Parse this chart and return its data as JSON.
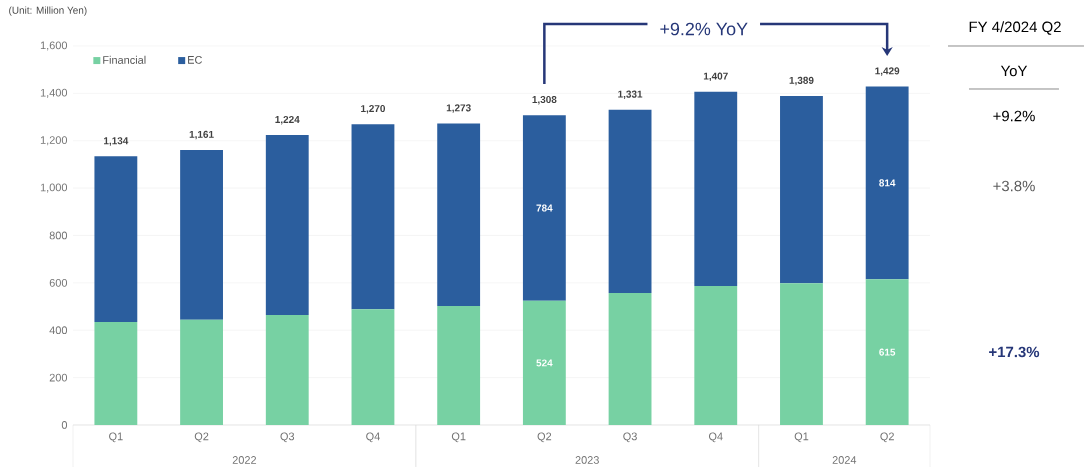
{
  "chart_data": {
    "type": "bar",
    "stacked": true,
    "categories": [
      "Q1",
      "Q2",
      "Q3",
      "Q4",
      "Q1",
      "Q2",
      "Q3",
      "Q4",
      "Q1",
      "Q2"
    ],
    "series": [
      {
        "name": "Financial",
        "color": "#77d1a3",
        "values": [
          435,
          444,
          464,
          489,
          502,
          524,
          557,
          587,
          598,
          615
        ],
        "value_labels": [
          null,
          null,
          null,
          null,
          null,
          "524",
          null,
          null,
          null,
          "615"
        ]
      },
      {
        "name": "EC",
        "color": "#2b5e9e",
        "values": [
          699,
          717,
          760,
          781,
          771,
          784,
          774,
          820,
          791,
          814
        ],
        "value_labels": [
          null,
          null,
          null,
          null,
          null,
          "784",
          null,
          null,
          null,
          "814"
        ]
      }
    ],
    "totals": [
      "1,134",
      "1,161",
      "1,224",
      "1,270",
      "1,273",
      "1,308",
      "1,331",
      "1,407",
      "1,389",
      "1,429"
    ],
    "ylim": [
      0,
      1600
    ],
    "yticks": [
      {
        "value": 0,
        "label": "0"
      },
      {
        "value": 200,
        "label": "200"
      },
      {
        "value": 400,
        "label": "400"
      },
      {
        "value": 600,
        "label": "600"
      },
      {
        "value": 800,
        "label": "800"
      },
      {
        "value": 1000,
        "label": "1,000"
      },
      {
        "value": 1200,
        "label": "1,200"
      },
      {
        "value": 1400,
        "label": "1,400"
      },
      {
        "value": 1600,
        "label": "1,600"
      }
    ],
    "grid": "y",
    "legend": "top left",
    "annotations": [
      "2022",
      "2023",
      "2024",
      "(Unit: Million Yen)",
      "+9.2% YoY",
      "FY 4/2024 Q2",
      "YoY",
      "+9.2%",
      "+3.8%",
      "+17.3%"
    ]
  }
}
